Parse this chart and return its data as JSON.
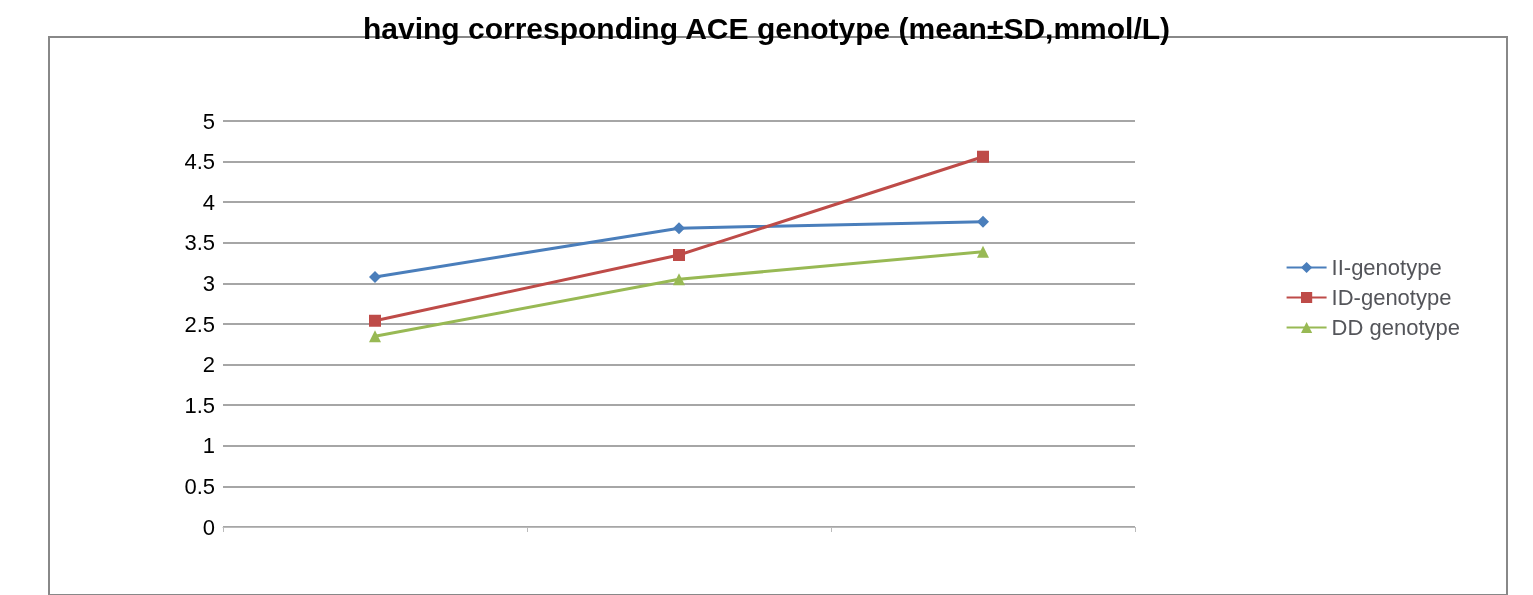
{
  "chart_data": {
    "type": "line",
    "title": "having corresponding ACE genotype (mean±SD,mmol/L)",
    "categories": [
      null,
      null,
      null
    ],
    "series": [
      {
        "name": "II-genotype",
        "color": "#4a7ebb",
        "marker": "diamond",
        "values": [
          3.08,
          3.68,
          3.76
        ]
      },
      {
        "name": "ID-genotype",
        "color": "#be4b48",
        "marker": "square",
        "values": [
          2.54,
          3.35,
          4.56
        ]
      },
      {
        "name": "DD genotype",
        "color": "#98b954",
        "marker": "triangle",
        "values": [
          2.35,
          3.05,
          3.39
        ]
      }
    ],
    "ylim": [
      0,
      5
    ],
    "yticks": [
      0,
      0.5,
      1,
      1.5,
      2,
      2.5,
      3,
      3.5,
      4,
      4.5,
      5
    ],
    "grid": "y",
    "legend": "right"
  }
}
